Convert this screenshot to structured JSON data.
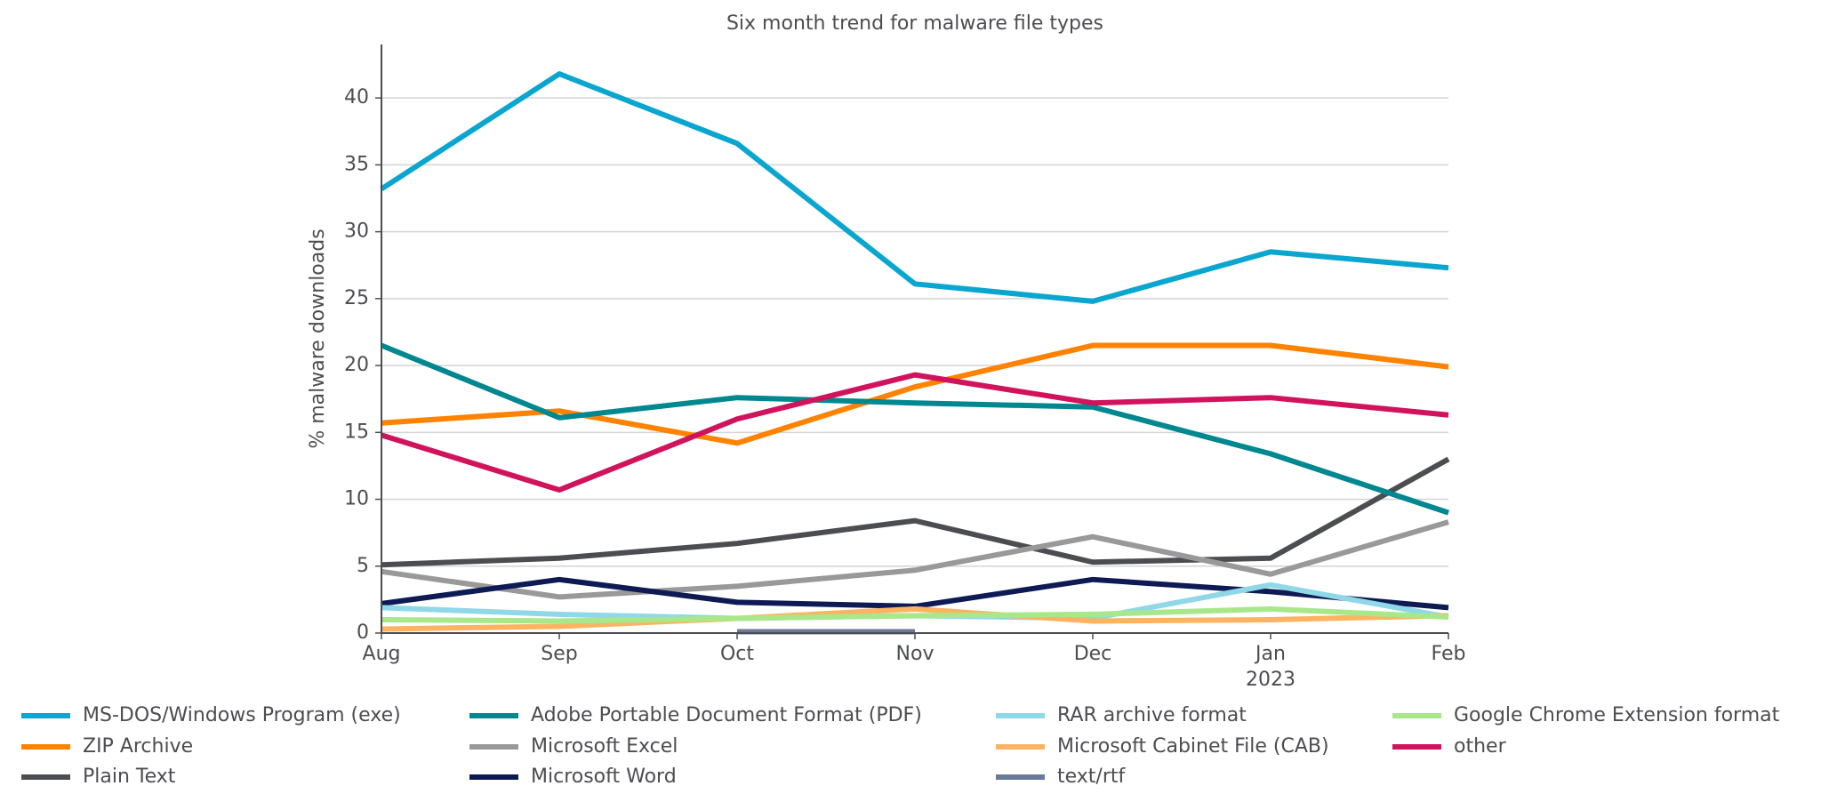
{
  "chart_data": {
    "type": "line",
    "title": "Six month trend for malware file types",
    "y_label": "% malware downloads",
    "categories": [
      "Aug",
      "Sep",
      "Oct",
      "Nov",
      "Dec",
      "Jan",
      "Feb"
    ],
    "category_sublabels": [
      null,
      null,
      null,
      null,
      null,
      "2023",
      null
    ],
    "ylim": [
      0,
      44
    ],
    "yticks": [
      0,
      5,
      10,
      15,
      20,
      25,
      30,
      35,
      40
    ],
    "grid": true,
    "legend": "bottom",
    "series": [
      {
        "name": "MS-DOS/Windows Program (exe)",
        "color": "#0aa6cf",
        "values": [
          33.2,
          41.8,
          36.6,
          26.1,
          24.8,
          28.5,
          27.3
        ]
      },
      {
        "name": "ZIP Archive",
        "color": "#ff8200",
        "values": [
          15.7,
          16.6,
          14.2,
          18.4,
          21.5,
          21.5,
          19.9
        ]
      },
      {
        "name": "Plain Text",
        "color": "#4c4d51",
        "values": [
          5.1,
          5.6,
          6.7,
          8.4,
          5.3,
          5.6,
          13.0
        ]
      },
      {
        "name": "Adobe Portable Document Format (PDF)",
        "color": "#00878f",
        "values": [
          21.5,
          16.1,
          17.6,
          17.2,
          16.9,
          13.4,
          9.0
        ]
      },
      {
        "name": "Microsoft Excel",
        "color": "#999999",
        "values": [
          4.6,
          2.7,
          3.5,
          4.7,
          7.2,
          4.4,
          8.3
        ]
      },
      {
        "name": "Microsoft Word",
        "color": "#0d1a54",
        "values": [
          2.2,
          4.0,
          2.3,
          2.0,
          4.0,
          3.1,
          1.9
        ]
      },
      {
        "name": "RAR archive format",
        "color": "#8fd8e8",
        "values": [
          1.9,
          1.4,
          1.1,
          1.3,
          1.1,
          3.6,
          1.2
        ]
      },
      {
        "name": "Microsoft Cabinet File (CAB)",
        "color": "#fdb462",
        "values": [
          0.3,
          0.5,
          1.1,
          1.8,
          0.9,
          1.0,
          1.3
        ]
      },
      {
        "name": "text/rtf",
        "color": "#6a7899",
        "values": [
          null,
          null,
          0.1,
          0.1,
          null,
          null,
          null
        ]
      },
      {
        "name": "Google Chrome Extension format",
        "color": "#a8e88a",
        "values": [
          1.0,
          0.9,
          1.1,
          1.3,
          1.4,
          1.8,
          1.2
        ]
      },
      {
        "name": "other",
        "color": "#d0135c",
        "values": [
          14.8,
          10.7,
          16.0,
          19.3,
          17.2,
          17.6,
          16.3
        ]
      }
    ]
  }
}
